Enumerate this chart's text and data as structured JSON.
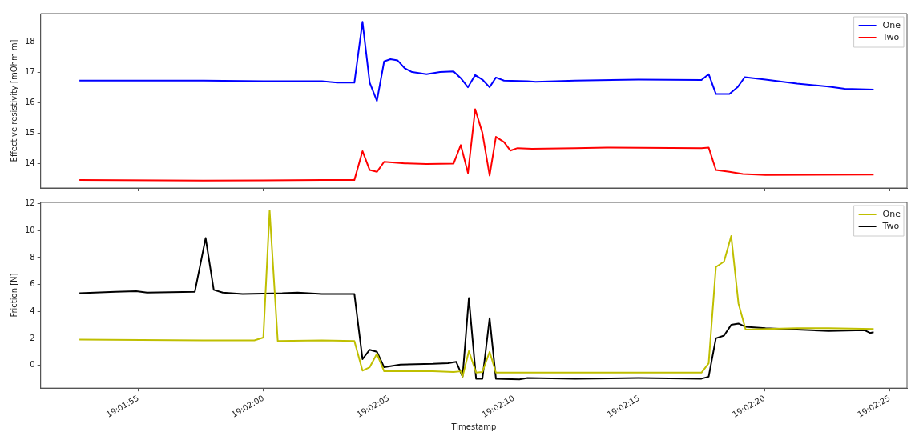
{
  "chart_data": [
    {
      "type": "line",
      "ylabel": "Effective resistivity [mOhm m]",
      "xlim": [
        19.03086,
        19.04047
      ],
      "xticks": [
        {
          "value": 19.031944,
          "label": null
        },
        {
          "value": 19.033333,
          "label": null
        },
        {
          "value": 19.034722,
          "label": null
        },
        {
          "value": 19.036111,
          "label": null
        },
        {
          "value": 19.0375,
          "label": null
        },
        {
          "value": 19.038889,
          "label": null
        },
        {
          "value": 19.040278,
          "label": null
        }
      ],
      "ylim": [
        13.19,
        18.92
      ],
      "yticks": [
        14,
        15,
        16,
        17,
        18
      ],
      "tick_labels": "y",
      "grid": false,
      "legend": "top right",
      "marker": "none",
      "line_style": "solid",
      "series": [
        {
          "name": "One",
          "color": "#0000ff",
          "x": [
            19.03129,
            19.03266,
            19.03333,
            19.03398,
            19.03415,
            19.03434,
            19.03443,
            19.03451,
            19.03459,
            19.03467,
            19.03474,
            19.03482,
            19.0349,
            19.03498,
            19.03514,
            19.03529,
            19.03544,
            19.03552,
            19.0356,
            19.03568,
            19.03576,
            19.03584,
            19.03591,
            19.036,
            19.03626,
            19.03635,
            19.03679,
            19.03749,
            19.03819,
            19.03827,
            19.03835,
            19.0385,
            19.03859,
            19.03867,
            19.0389,
            19.03925,
            19.0396,
            19.03978,
            19.0401
          ],
          "values": [
            16.72,
            16.72,
            16.7,
            16.7,
            16.65,
            16.65,
            18.65,
            16.65,
            16.05,
            17.35,
            17.42,
            17.38,
            17.12,
            17.0,
            16.93,
            17.0,
            17.02,
            16.8,
            16.5,
            16.9,
            16.75,
            16.5,
            16.82,
            16.72,
            16.7,
            16.68,
            16.72,
            16.75,
            16.74,
            16.93,
            16.28,
            16.28,
            16.5,
            16.83,
            16.75,
            16.62,
            16.52,
            16.45,
            16.42
          ]
        },
        {
          "name": "Two",
          "color": "#ff0000",
          "x": [
            19.03129,
            19.03266,
            19.03333,
            19.03398,
            19.03434,
            19.03443,
            19.03451,
            19.03459,
            19.03467,
            19.0349,
            19.03514,
            19.03544,
            19.03552,
            19.0356,
            19.03568,
            19.03576,
            19.03584,
            19.03591,
            19.036,
            19.03607,
            19.03615,
            19.03631,
            19.03679,
            19.03714,
            19.03819,
            19.03827,
            19.03835,
            19.0385,
            19.03865,
            19.0389,
            19.0401
          ],
          "values": [
            13.45,
            13.43,
            13.44,
            13.45,
            13.45,
            14.4,
            13.78,
            13.72,
            14.05,
            14.0,
            13.98,
            13.99,
            14.6,
            13.68,
            15.78,
            15.0,
            13.6,
            14.87,
            14.7,
            14.42,
            14.5,
            14.48,
            14.5,
            14.52,
            14.5,
            14.52,
            13.78,
            13.72,
            13.65,
            13.62,
            13.63
          ]
        }
      ]
    },
    {
      "type": "line",
      "xlabel": "Timestamp",
      "ylabel": "Friction [N]",
      "xlim": [
        19.03086,
        19.04047
      ],
      "xticks": [
        {
          "value": 19.031944,
          "label": "19:01:55"
        },
        {
          "value": 19.033333,
          "label": "19:02:00"
        },
        {
          "value": 19.034722,
          "label": "19:02:05"
        },
        {
          "value": 19.036111,
          "label": "19:02:10"
        },
        {
          "value": 19.0375,
          "label": "19:02:15"
        },
        {
          "value": 19.038889,
          "label": "19:02:20"
        },
        {
          "value": 19.040278,
          "label": "19:02:25"
        }
      ],
      "ylim": [
        -1.7,
        12.1
      ],
      "yticks": [
        0,
        2,
        4,
        6,
        8,
        10,
        12
      ],
      "grid": false,
      "legend": "top right",
      "marker": "none",
      "line_style": "solid",
      "series": [
        {
          "name": "One",
          "color": "#bfbf00",
          "x": [
            19.03129,
            19.03266,
            19.03323,
            19.03333,
            19.0334,
            19.03349,
            19.03398,
            19.03434,
            19.03443,
            19.03451,
            19.03459,
            19.03467,
            19.03521,
            19.03544,
            19.03552,
            19.03554,
            19.03561,
            19.03569,
            19.03576,
            19.03584,
            19.03591,
            19.03819,
            19.03827,
            19.03835,
            19.03844,
            19.03852,
            19.0386,
            19.03868,
            19.0389,
            19.03925,
            19.0396,
            19.0401
          ],
          "values": [
            1.9,
            1.85,
            1.85,
            2.05,
            11.5,
            1.8,
            1.85,
            1.8,
            -0.4,
            -0.15,
            0.85,
            -0.45,
            -0.45,
            -0.5,
            -0.45,
            -0.85,
            1.05,
            -0.55,
            -0.5,
            1.0,
            -0.55,
            -0.55,
            0.15,
            7.3,
            7.7,
            9.6,
            4.6,
            2.65,
            2.7,
            2.75,
            2.75,
            2.7
          ]
        },
        {
          "name": "Two",
          "color": "#000000",
          "x": [
            19.03129,
            19.03169,
            19.03192,
            19.03204,
            19.03257,
            19.03269,
            19.03278,
            19.03288,
            19.0331,
            19.03354,
            19.03371,
            19.03398,
            19.03434,
            19.03443,
            19.03451,
            19.03459,
            19.03467,
            19.03485,
            19.03521,
            19.03538,
            19.03547,
            19.03554,
            19.03561,
            19.03569,
            19.03576,
            19.03584,
            19.03591,
            19.03617,
            19.03626,
            19.03679,
            19.03749,
            19.03819,
            19.03827,
            19.03835,
            19.03844,
            19.03852,
            19.0386,
            19.03868,
            19.0389,
            19.03925,
            19.0396,
            19.04,
            19.04006,
            19.0401
          ],
          "values": [
            5.35,
            5.45,
            5.5,
            5.4,
            5.45,
            9.45,
            5.6,
            5.4,
            5.3,
            5.35,
            5.4,
            5.3,
            5.3,
            0.45,
            1.15,
            1.0,
            -0.15,
            0.05,
            0.1,
            0.15,
            0.25,
            -0.85,
            5.0,
            -1.0,
            -1.0,
            3.5,
            -1.0,
            -1.05,
            -0.95,
            -1.0,
            -0.95,
            -1.0,
            -0.85,
            2.0,
            2.2,
            3.0,
            3.1,
            2.85,
            2.75,
            2.65,
            2.55,
            2.6,
            2.4,
            2.45
          ]
        }
      ]
    }
  ]
}
